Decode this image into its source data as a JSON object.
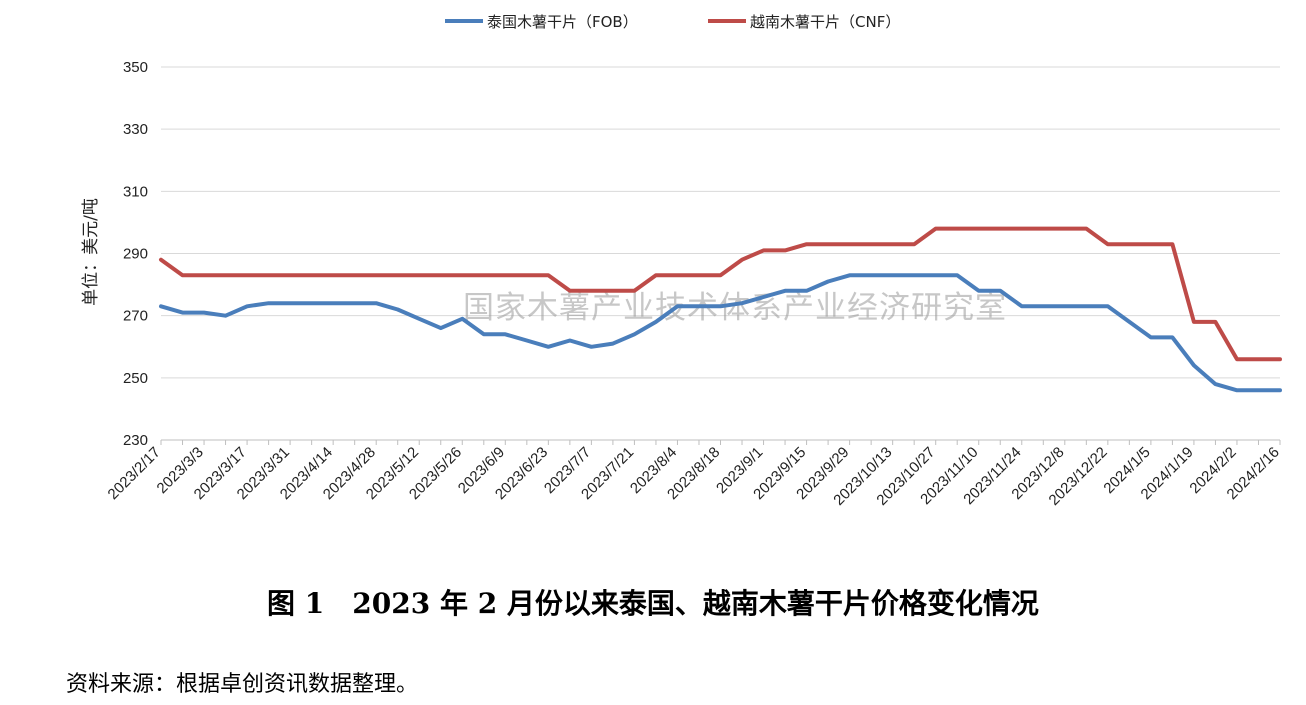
{
  "chart_data": {
    "type": "line",
    "ylabel": "单位：美元/吨",
    "ylim": [
      230,
      350
    ],
    "yticks": [
      230,
      250,
      270,
      290,
      310,
      330,
      350
    ],
    "grid": "horizontal",
    "legend_position": "top-center",
    "x_tick_labels": [
      "2023/2/17",
      "2023/3/3",
      "2023/3/17",
      "2023/3/31",
      "2023/4/14",
      "2023/4/28",
      "2023/5/12",
      "2023/5/26",
      "2023/6/9",
      "2023/6/23",
      "2023/7/7",
      "2023/7/21",
      "2023/8/4",
      "2023/8/18",
      "2023/9/1",
      "2023/9/15",
      "2023/9/29",
      "2023/10/13",
      "2023/10/27",
      "2023/11/10",
      "2023/11/24",
      "2023/12/8",
      "2023/12/22",
      "2024/1/5",
      "2024/1/19",
      "2024/2/2",
      "2024/2/16"
    ],
    "x": [
      "2023/2/17",
      "2023/2/24",
      "2023/3/3",
      "2023/3/10",
      "2023/3/17",
      "2023/3/24",
      "2023/3/31",
      "2023/4/7",
      "2023/4/14",
      "2023/4/21",
      "2023/4/28",
      "2023/5/5",
      "2023/5/12",
      "2023/5/19",
      "2023/5/26",
      "2023/6/2",
      "2023/6/9",
      "2023/6/16",
      "2023/6/23",
      "2023/6/30",
      "2023/7/7",
      "2023/7/14",
      "2023/7/21",
      "2023/7/28",
      "2023/8/4",
      "2023/8/11",
      "2023/8/18",
      "2023/8/25",
      "2023/9/1",
      "2023/9/8",
      "2023/9/15",
      "2023/9/22",
      "2023/9/29",
      "2023/10/6",
      "2023/10/13",
      "2023/10/20",
      "2023/10/27",
      "2023/11/3",
      "2023/11/10",
      "2023/11/17",
      "2023/11/24",
      "2023/12/1",
      "2023/12/8",
      "2023/12/15",
      "2023/12/22",
      "2023/12/29",
      "2024/1/5",
      "2024/1/12",
      "2024/1/19",
      "2024/1/26",
      "2024/2/2",
      "2024/2/9",
      "2024/2/16"
    ],
    "series": [
      {
        "name": "泰国木薯干片（FOB）",
        "color": "#4a7ebb",
        "values": [
          273,
          271,
          271,
          270,
          273,
          274,
          274,
          274,
          274,
          274,
          274,
          272,
          269,
          266,
          269,
          264,
          264,
          262,
          260,
          262,
          260,
          261,
          264,
          268,
          273,
          273,
          273,
          274,
          276,
          278,
          278,
          281,
          283,
          283,
          283,
          283,
          283,
          283,
          278,
          278,
          273,
          273,
          273,
          273,
          273,
          268,
          263,
          263,
          254,
          248,
          246,
          246,
          246
        ]
      },
      {
        "name": "越南木薯干片（CNF）",
        "color": "#be4b48",
        "values": [
          288,
          283,
          283,
          283,
          283,
          283,
          283,
          283,
          283,
          283,
          283,
          283,
          283,
          283,
          283,
          283,
          283,
          283,
          283,
          278,
          278,
          278,
          278,
          283,
          283,
          283,
          283,
          288,
          291,
          291,
          293,
          293,
          293,
          293,
          293,
          293,
          298,
          298,
          298,
          298,
          298,
          298,
          298,
          298,
          293,
          293,
          293,
          293,
          268,
          268,
          256,
          256,
          256
        ]
      }
    ],
    "watermark": "国家木薯产业技术体系产业经济研究室"
  },
  "caption": "图 1　2023 年 2 月份以来泰国、越南木薯干片价格变化情况",
  "source": "资料来源：根据卓创资讯数据整理。"
}
